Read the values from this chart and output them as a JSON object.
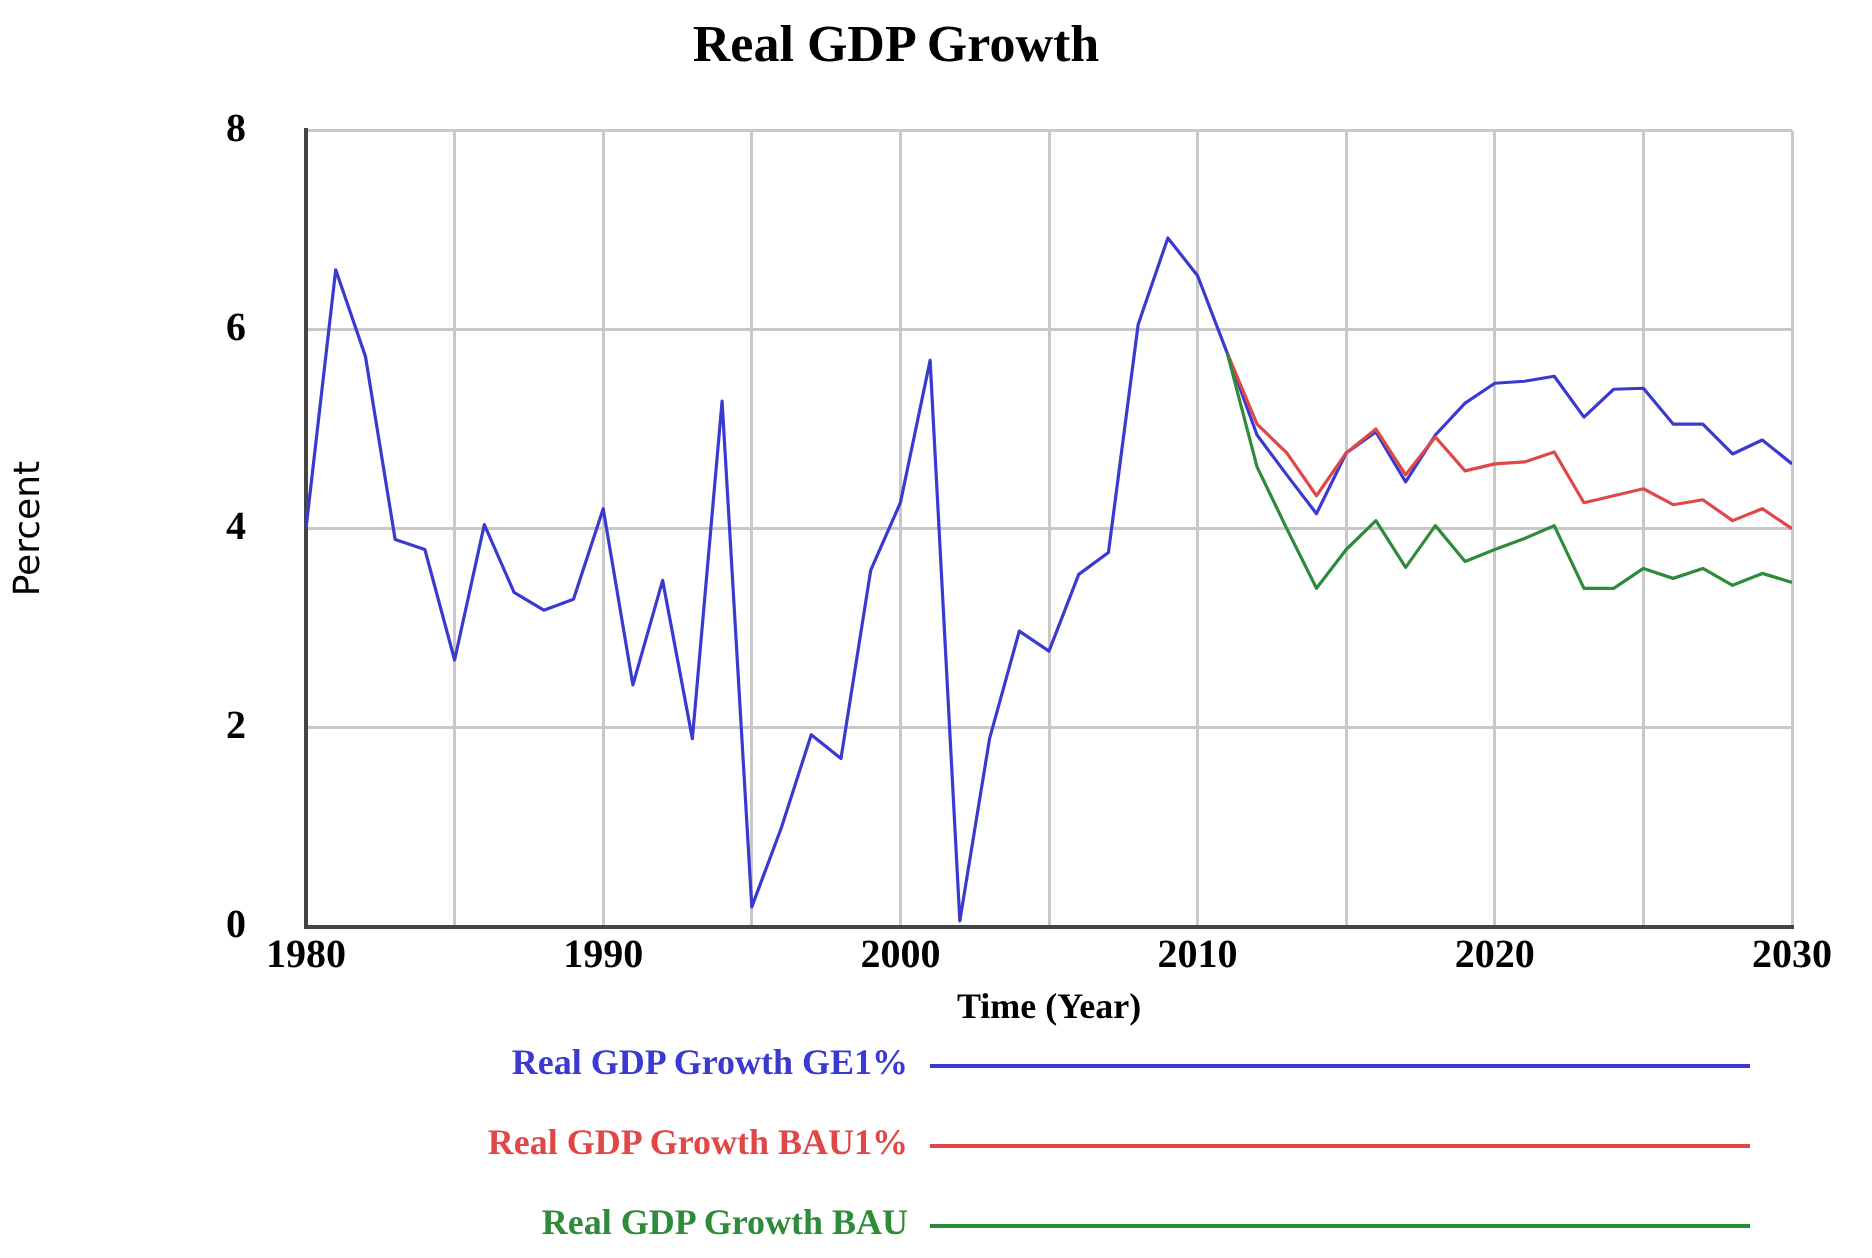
{
  "chart_data": {
    "type": "line",
    "title": "Real GDP Growth",
    "xlabel": "Time (Year)",
    "ylabel": "Percent",
    "x": [
      1980,
      1981,
      1982,
      1983,
      1984,
      1985,
      1986,
      1987,
      1988,
      1989,
      1990,
      1991,
      1992,
      1993,
      1994,
      1995,
      1996,
      1997,
      1998,
      1999,
      2000,
      2001,
      2002,
      2003,
      2004,
      2005,
      2006,
      2007,
      2008,
      2009,
      2010,
      2011,
      2012,
      2013,
      2014,
      2015,
      2016,
      2017,
      2018,
      2019,
      2020,
      2021,
      2022,
      2023,
      2024,
      2025,
      2026,
      2027,
      2028,
      2029,
      2030
    ],
    "series": [
      {
        "name": "Real GDP Growth BAU",
        "color": "#2e8b3a",
        "values": [
          null,
          null,
          null,
          null,
          null,
          null,
          null,
          null,
          null,
          null,
          null,
          null,
          null,
          null,
          null,
          null,
          null,
          null,
          null,
          null,
          null,
          null,
          null,
          null,
          null,
          null,
          null,
          null,
          null,
          null,
          null,
          5.76,
          4.62,
          4.0,
          3.4,
          3.79,
          4.08,
          3.61,
          4.03,
          3.67,
          3.79,
          3.9,
          4.03,
          3.4,
          3.4,
          3.6,
          3.5,
          3.6,
          3.43,
          3.55,
          3.46
        ]
      },
      {
        "name": "Real GDP Growth BAU1%",
        "color": "#e04848",
        "values": [
          null,
          null,
          null,
          null,
          null,
          null,
          null,
          null,
          null,
          null,
          null,
          null,
          null,
          null,
          null,
          null,
          null,
          null,
          null,
          null,
          null,
          null,
          null,
          null,
          null,
          null,
          null,
          null,
          null,
          null,
          null,
          5.76,
          5.05,
          4.76,
          4.33,
          4.76,
          5.0,
          4.54,
          4.92,
          4.58,
          4.65,
          4.67,
          4.77,
          4.26,
          4.33,
          4.4,
          4.24,
          4.29,
          4.08,
          4.2,
          4.0
        ]
      },
      {
        "name": "Real GDP Growth GE1%",
        "color": "#3a3ad0",
        "values": [
          4.0,
          6.6,
          5.73,
          3.89,
          3.79,
          2.68,
          4.04,
          3.36,
          3.18,
          3.29,
          4.2,
          2.43,
          3.48,
          1.89,
          5.28,
          0.2,
          1.0,
          1.93,
          1.69,
          3.58,
          4.26,
          5.69,
          0.06,
          1.89,
          2.97,
          2.77,
          3.54,
          3.76,
          6.05,
          6.92,
          6.54,
          5.76,
          4.94,
          4.54,
          4.15,
          4.76,
          4.97,
          4.47,
          4.94,
          5.26,
          5.46,
          5.48,
          5.53,
          5.12,
          5.4,
          5.41,
          5.05,
          5.05,
          4.75,
          4.89,
          4.65
        ]
      }
    ],
    "xlim": [
      1980,
      2030
    ],
    "xticks": [
      1980,
      {
        "value": 1985,
        "label": null
      },
      1990,
      {
        "value": 1995,
        "label": null
      },
      2000,
      {
        "value": 2005,
        "label": null
      },
      2010,
      {
        "value": 2015,
        "label": null
      },
      2020,
      {
        "value": 2025,
        "label": null
      },
      2030
    ],
    "ylim": [
      0,
      8
    ],
    "yticks": [
      0,
      2,
      4,
      6,
      8
    ],
    "grid": true,
    "legend": "bottom",
    "marker": "none",
    "line_style": "solid"
  }
}
